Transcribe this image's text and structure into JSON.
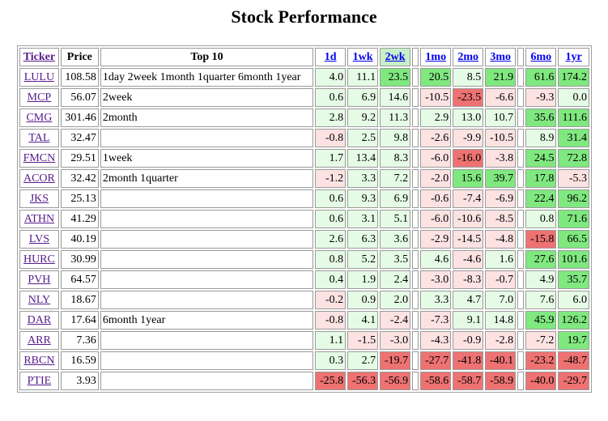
{
  "page": {
    "title": "Stock Performance"
  },
  "table": {
    "headers": {
      "ticker": "Ticker",
      "price": "Price",
      "top10": "Top 10",
      "periods": [
        "1d",
        "1wk",
        "2wk",
        "1mo",
        "2mo",
        "3mo",
        "6mo",
        "1yr"
      ],
      "sorted_period": "2wk"
    },
    "rows": [
      {
        "ticker": "LULU",
        "price": "108.58",
        "top10": "1day 2week 1month 1quarter 6month 1year",
        "values": [
          "4.0",
          "11.1",
          "23.5",
          "20.5",
          "8.5",
          "21.9",
          "61.6",
          "174.2"
        ]
      },
      {
        "ticker": "MCP",
        "price": "56.07",
        "top10": "2week",
        "values": [
          "0.6",
          "6.9",
          "14.6",
          "-10.5",
          "-23.5",
          "-6.6",
          "-9.3",
          "0.0"
        ]
      },
      {
        "ticker": "CMG",
        "price": "301.46",
        "top10": "2month",
        "values": [
          "2.8",
          "9.2",
          "11.3",
          "2.9",
          "13.0",
          "10.7",
          "35.6",
          "111.6"
        ]
      },
      {
        "ticker": "TAL",
        "price": "32.47",
        "top10": "",
        "values": [
          "-0.8",
          "2.5",
          "9.8",
          "-2.6",
          "-9.9",
          "-10.5",
          "8.9",
          "31.4"
        ]
      },
      {
        "ticker": "FMCN",
        "price": "29.51",
        "top10": "1week",
        "values": [
          "1.7",
          "13.4",
          "8.3",
          "-6.0",
          "-16.0",
          "-3.8",
          "24.5",
          "72.8"
        ]
      },
      {
        "ticker": "ACOR",
        "price": "32.42",
        "top10": "2month 1quarter",
        "values": [
          "-1.2",
          "3.3",
          "7.2",
          "-2.0",
          "15.6",
          "39.7",
          "17.8",
          "-5.3"
        ]
      },
      {
        "ticker": "JKS",
        "price": "25.13",
        "top10": "",
        "values": [
          "0.6",
          "9.3",
          "6.9",
          "-0.6",
          "-7.4",
          "-6.9",
          "22.4",
          "96.2"
        ]
      },
      {
        "ticker": "ATHN",
        "price": "41.29",
        "top10": "",
        "values": [
          "0.6",
          "3.1",
          "5.1",
          "-6.0",
          "-10.6",
          "-8.5",
          "0.8",
          "71.6"
        ]
      },
      {
        "ticker": "LVS",
        "price": "40.19",
        "top10": "",
        "values": [
          "2.6",
          "6.3",
          "3.6",
          "-2.9",
          "-14.5",
          "-4.8",
          "-15.8",
          "66.5"
        ]
      },
      {
        "ticker": "HURC",
        "price": "30.99",
        "top10": "",
        "values": [
          "0.8",
          "5.2",
          "3.5",
          "4.6",
          "-4.6",
          "1.6",
          "27.6",
          "101.6"
        ]
      },
      {
        "ticker": "PVH",
        "price": "64.57",
        "top10": "",
        "values": [
          "0.4",
          "1.9",
          "2.4",
          "-3.0",
          "-8.3",
          "-0.7",
          "4.9",
          "35.7"
        ]
      },
      {
        "ticker": "NLY",
        "price": "18.67",
        "top10": "",
        "values": [
          "-0.2",
          "0.9",
          "2.0",
          "3.3",
          "4.7",
          "7.0",
          "7.6",
          "6.0"
        ]
      },
      {
        "ticker": "DAR",
        "price": "17.64",
        "top10": "6month 1year",
        "values": [
          "-0.8",
          "4.1",
          "-2.4",
          "-7.3",
          "9.1",
          "14.8",
          "45.9",
          "126.2"
        ]
      },
      {
        "ticker": "ARR",
        "price": "7.36",
        "top10": "",
        "values": [
          "1.1",
          "-1.5",
          "-3.0",
          "-4.3",
          "-0.9",
          "-2.8",
          "-7.2",
          "19.7"
        ]
      },
      {
        "ticker": "RBCN",
        "price": "16.59",
        "top10": "",
        "values": [
          "0.3",
          "2.7",
          "-19.7",
          "-27.7",
          "-41.8",
          "-40.1",
          "-23.2",
          "-48.7"
        ]
      },
      {
        "ticker": "PTIE",
        "price": "3.93",
        "top10": "",
        "values": [
          "-25.8",
          "-56.3",
          "-56.9",
          "-58.6",
          "-58.7",
          "-58.9",
          "-40.0",
          "-29.7"
        ]
      }
    ]
  },
  "colors": {
    "positive_light": "#e6fbe6",
    "positive_strong": "#7fe87f",
    "negative_light": "#fde2e2",
    "negative_strong": "#ee7272",
    "link": "#551a8b",
    "sorted_header": "#c8f0c8"
  }
}
